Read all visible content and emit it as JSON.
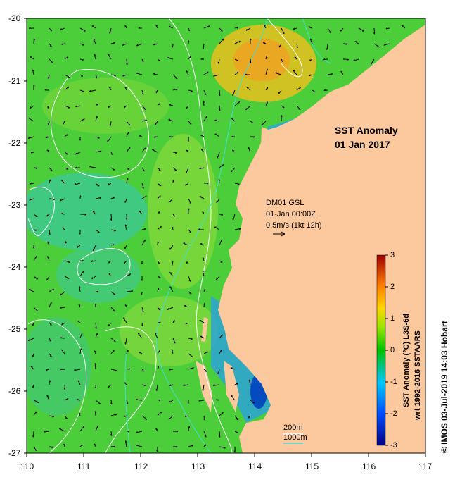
{
  "map": {
    "title_line1": "SST Anomaly",
    "title_line2": "01 Jan 2017",
    "lat_ticks": [
      "-20",
      "-21",
      "-22",
      "-23",
      "-24",
      "-25",
      "-26",
      "-27"
    ],
    "lon_ticks": [
      "110",
      "111",
      "112",
      "113",
      "114",
      "115",
      "116",
      "117"
    ],
    "lon_range": [
      110,
      117
    ],
    "lat_range": [
      -27,
      -20
    ],
    "current_info": {
      "line1": "DM01 GSL",
      "line2": "01-Jan 00:00Z",
      "line3": "0.5m/s (1kt 12h)"
    },
    "contour_legend": {
      "label1": "200m",
      "label2": "1000m",
      "color1": "#ffffff",
      "color2": "#40e0d0"
    },
    "land_color": "#fbc99d",
    "colorbar": {
      "ticks": [
        "3",
        "2",
        "1",
        "0",
        "-1",
        "-2",
        "-3"
      ],
      "range": [
        -3,
        3
      ],
      "label_line1": "SST Anomaly (°C) L3S-6d",
      "label_line2": "wrt 1992-2016 SSTAARS"
    },
    "credit": "© IMOS 03-Jul-2019 14:03 Hobart"
  }
}
